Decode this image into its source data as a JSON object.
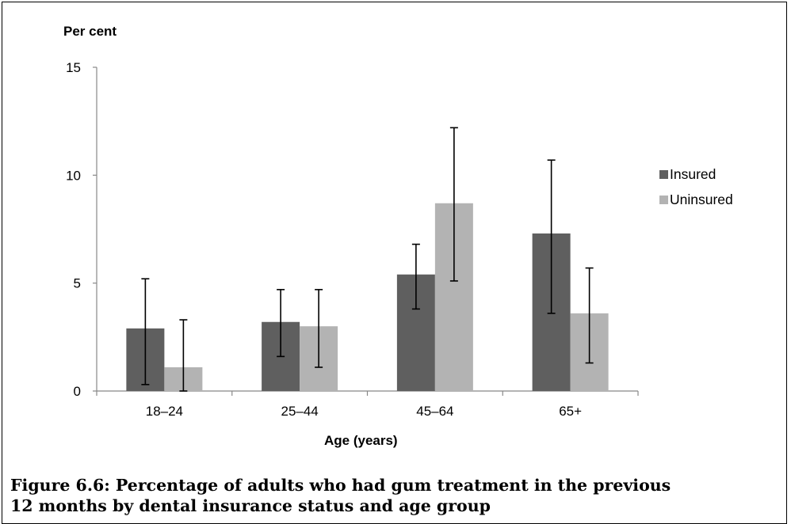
{
  "chart_data": {
    "type": "bar",
    "ylabel": "Per cent",
    "xlabel": "Age (years)",
    "categories": [
      "18–24",
      "25–44",
      "45–64",
      "65+"
    ],
    "ylim": [
      0,
      15
    ],
    "yticks": [
      "0",
      "5",
      "10",
      "15"
    ],
    "grid": false,
    "legend_position": "right",
    "series": [
      {
        "name": "Insured",
        "color": "#5f5f5f",
        "values": [
          2.9,
          3.2,
          5.4,
          7.3
        ],
        "error_low": [
          0.3,
          1.6,
          3.8,
          3.6
        ],
        "error_high": [
          5.2,
          4.7,
          6.8,
          10.7
        ]
      },
      {
        "name": "Uninsured",
        "color": "#b3b3b3",
        "values": [
          1.1,
          3.0,
          8.7,
          3.6
        ],
        "error_low": [
          0.0,
          1.1,
          5.1,
          1.3
        ],
        "error_high": [
          3.3,
          4.7,
          12.2,
          5.7
        ]
      }
    ]
  },
  "caption": {
    "line1": "Figure 6.6: Percentage of adults who had gum treatment in the previous",
    "line2": "12 months by dental insurance status and age group"
  }
}
